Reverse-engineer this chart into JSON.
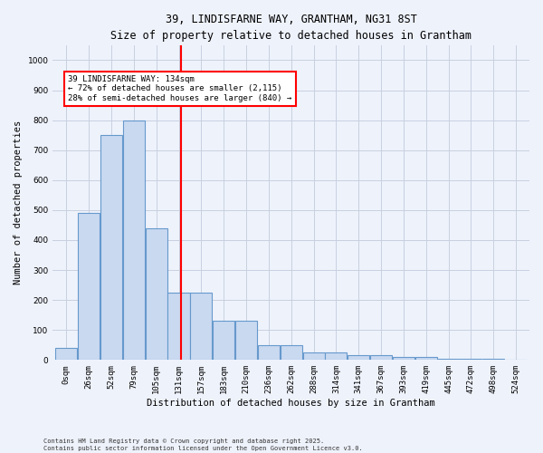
{
  "title": "39, LINDISFARNE WAY, GRANTHAM, NG31 8ST",
  "subtitle": "Size of property relative to detached houses in Grantham",
  "xlabel": "Distribution of detached houses by size in Grantham",
  "ylabel": "Number of detached properties",
  "bin_labels": [
    "0sqm",
    "26sqm",
    "52sqm",
    "79sqm",
    "105sqm",
    "131sqm",
    "157sqm",
    "183sqm",
    "210sqm",
    "236sqm",
    "262sqm",
    "288sqm",
    "314sqm",
    "341sqm",
    "367sqm",
    "393sqm",
    "419sqm",
    "445sqm",
    "472sqm",
    "498sqm",
    "524sqm"
  ],
  "bar_heights": [
    40,
    490,
    750,
    800,
    440,
    225,
    225,
    130,
    130,
    50,
    50,
    25,
    25,
    15,
    15,
    10,
    10,
    5,
    5,
    5,
    0
  ],
  "bar_color": "#c9d9f0",
  "bar_edge_color": "#6699cc",
  "vline_color": "red",
  "annotation_text": "39 LINDISFARNE WAY: 134sqm\n← 72% of detached houses are smaller (2,115)\n28% of semi-detached houses are larger (840) →",
  "annotation_box_color": "white",
  "annotation_box_edge_color": "red",
  "ylim": [
    0,
    1050
  ],
  "yticks": [
    0,
    100,
    200,
    300,
    400,
    500,
    600,
    700,
    800,
    900,
    1000
  ],
  "footer_line1": "Contains HM Land Registry data © Crown copyright and database right 2025.",
  "footer_line2": "Contains public sector information licensed under the Open Government Licence v3.0.",
  "bg_color": "#eef2fb",
  "grid_color": "#c8d0e0",
  "title_fontsize": 8.5,
  "label_fontsize": 7.5,
  "tick_fontsize": 6.5,
  "annotation_fontsize": 6.5,
  "footer_fontsize": 5.0
}
